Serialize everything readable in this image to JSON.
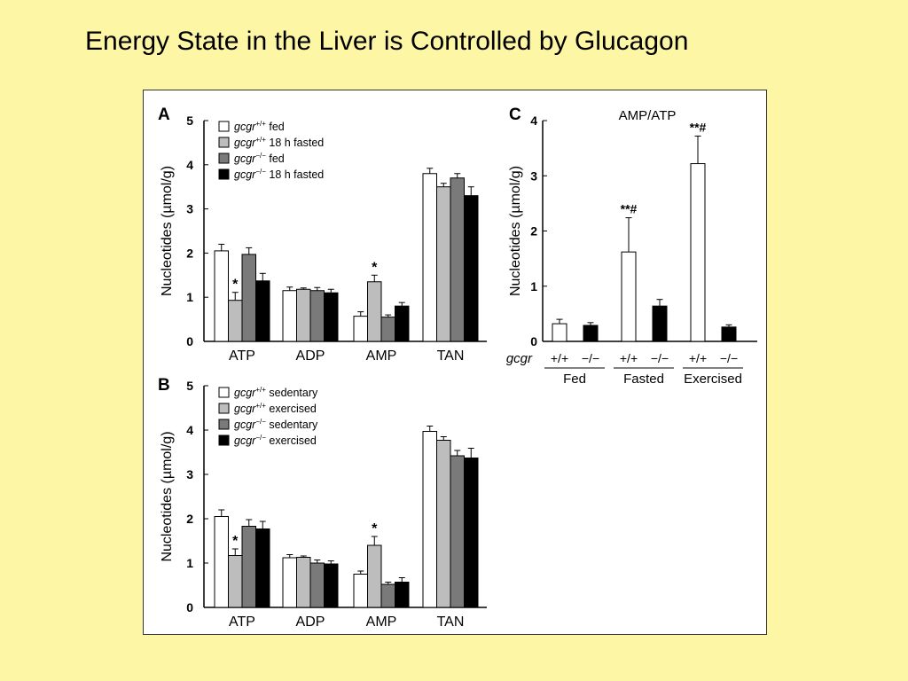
{
  "slide": {
    "title": "Energy State in the Liver is Controlled by Glucagon"
  },
  "chart_data": [
    {
      "panel": "A",
      "type": "bar",
      "ylabel": "Nucleotides (µmol/g)",
      "ylim": [
        0,
        5
      ],
      "yticks": [
        "0",
        "1",
        "2",
        "3",
        "4",
        "5"
      ],
      "categories": [
        "ATP",
        "ADP",
        "AMP",
        "TAN"
      ],
      "legend_position": "top-left",
      "series": [
        {
          "gene": "gcgr",
          "genotype": "+/+",
          "name": "fed",
          "color": "#ffffff",
          "values": [
            2.05,
            1.15,
            0.57,
            3.8
          ],
          "errors": [
            0.15,
            0.08,
            0.1,
            0.12
          ]
        },
        {
          "gene": "gcgr",
          "genotype": "+/+",
          "name": "18 h fasted",
          "color": "#bdbdbd",
          "values": [
            0.93,
            1.18,
            1.35,
            3.5
          ],
          "errors": [
            0.18,
            0.03,
            0.15,
            0.08
          ]
        },
        {
          "gene": "gcgr",
          "genotype": "−/−",
          "name": "fed",
          "color": "#7a7a7a",
          "values": [
            1.97,
            1.15,
            0.55,
            3.7
          ],
          "errors": [
            0.15,
            0.07,
            0.05,
            0.1
          ]
        },
        {
          "gene": "gcgr",
          "genotype": "−/−",
          "name": "18 h fasted",
          "color": "#000000",
          "values": [
            1.37,
            1.1,
            0.8,
            3.3
          ],
          "errors": [
            0.17,
            0.08,
            0.08,
            0.2
          ]
        }
      ],
      "annotations": [
        {
          "text": "*",
          "category": "ATP",
          "series": 1
        },
        {
          "text": "*",
          "category": "AMP",
          "series": 1
        }
      ]
    },
    {
      "panel": "B",
      "type": "bar",
      "ylabel": "Nucleotides (µmol/g)",
      "ylim": [
        0,
        5
      ],
      "yticks": [
        "0",
        "1",
        "2",
        "3",
        "4",
        "5"
      ],
      "categories": [
        "ATP",
        "ADP",
        "AMP",
        "TAN"
      ],
      "legend_position": "top-left",
      "series": [
        {
          "gene": "gcgr",
          "genotype": "+/+",
          "name": "sedentary",
          "color": "#ffffff",
          "values": [
            2.05,
            1.12,
            0.75,
            3.97
          ],
          "errors": [
            0.15,
            0.07,
            0.07,
            0.12
          ]
        },
        {
          "gene": "gcgr",
          "genotype": "+/+",
          "name": "exercised",
          "color": "#bdbdbd",
          "values": [
            1.17,
            1.13,
            1.4,
            3.77
          ],
          "errors": [
            0.15,
            0.03,
            0.2,
            0.08
          ]
        },
        {
          "gene": "gcgr",
          "genotype": "−/−",
          "name": "sedentary",
          "color": "#7a7a7a",
          "values": [
            1.83,
            1.0,
            0.52,
            3.42
          ],
          "errors": [
            0.15,
            0.07,
            0.05,
            0.12
          ]
        },
        {
          "gene": "gcgr",
          "genotype": "−/−",
          "name": "exercised",
          "color": "#000000",
          "values": [
            1.77,
            0.98,
            0.57,
            3.37
          ],
          "errors": [
            0.17,
            0.07,
            0.1,
            0.22
          ]
        }
      ],
      "annotations": [
        {
          "text": "*",
          "category": "ATP",
          "series": 1
        },
        {
          "text": "*",
          "category": "AMP",
          "series": 1
        }
      ]
    },
    {
      "panel": "C",
      "type": "bar",
      "title": "AMP/ATP",
      "ylabel": "Nucleotides (µmol/g)",
      "ylim": [
        0,
        4
      ],
      "yticks": [
        "0",
        "1",
        "2",
        "3",
        "4"
      ],
      "gene_label": "gcgr",
      "groups": [
        "Fed",
        "Fasted",
        "Exercised"
      ],
      "genotypes": [
        "+/+",
        "−/−"
      ],
      "colors": {
        "+/+": "#ffffff",
        "−/−": "#000000"
      },
      "values": [
        {
          "group": "Fed",
          "genotype": "+/+",
          "value": 0.32,
          "error": 0.08
        },
        {
          "group": "Fed",
          "genotype": "−/−",
          "value": 0.29,
          "error": 0.05
        },
        {
          "group": "Fasted",
          "genotype": "+/+",
          "value": 1.62,
          "error": 0.62
        },
        {
          "group": "Fasted",
          "genotype": "−/−",
          "value": 0.64,
          "error": 0.12
        },
        {
          "group": "Exercised",
          "genotype": "+/+",
          "value": 3.22,
          "error": 0.5
        },
        {
          "group": "Exercised",
          "genotype": "−/−",
          "value": 0.26,
          "error": 0.04
        }
      ],
      "annotations": [
        {
          "text": "**#",
          "group": "Fasted",
          "genotype": "+/+"
        },
        {
          "text": "**#",
          "group": "Exercised",
          "genotype": "+/+"
        }
      ]
    }
  ]
}
